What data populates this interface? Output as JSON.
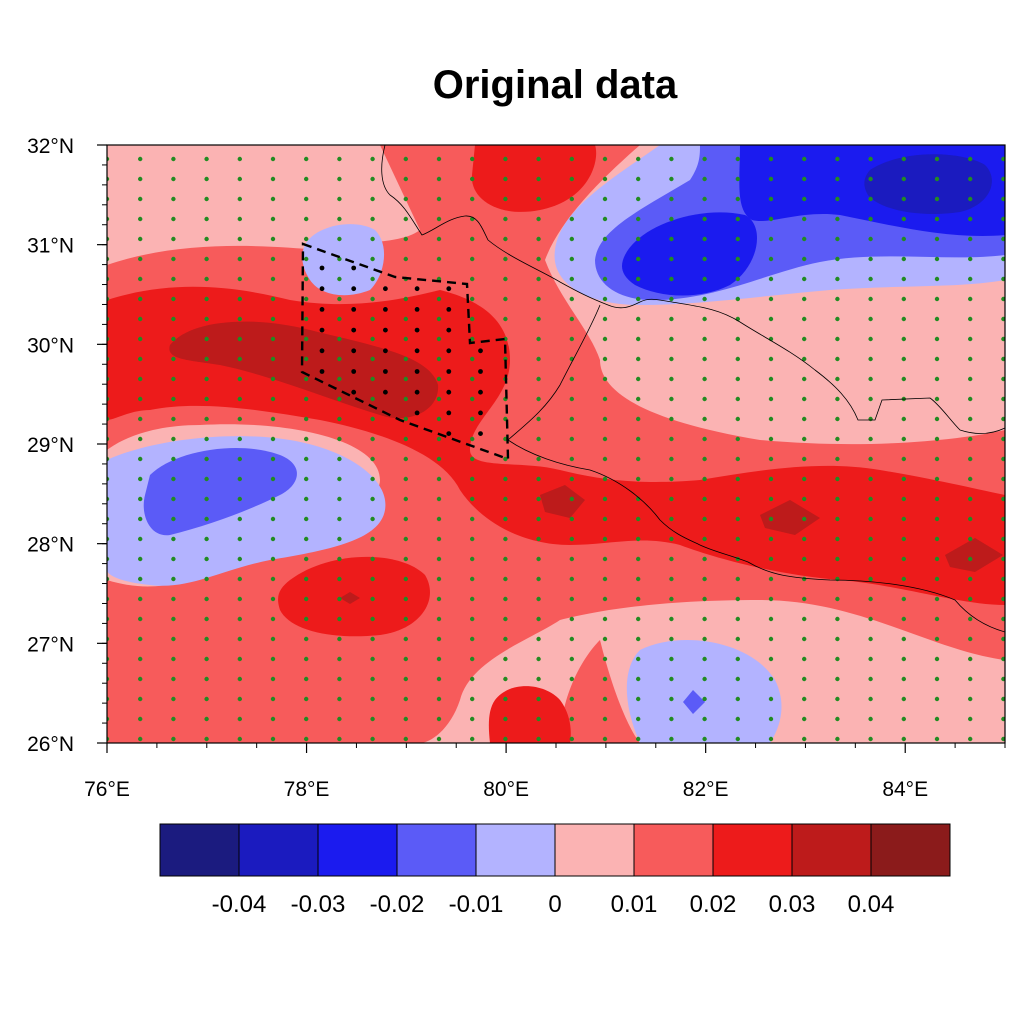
{
  "title": "Original data",
  "colors": {
    "levels": [
      "#1b1b7f",
      "#1b1bbf",
      "#1b1bef",
      "#5b5bf7",
      "#b3b3ff",
      "#fbb3b3",
      "#f75b5b",
      "#ed1b1b",
      "#bd1b1b",
      "#8b1b1b"
    ],
    "contour_line": "#000000",
    "stipple": "#228b22",
    "region_dot": "#000000",
    "boundary": "#000000"
  },
  "axes": {
    "lon_ticks": [
      "76°E",
      "78°E",
      "80°E",
      "82°E",
      "84°E"
    ],
    "lat_ticks": [
      "26°N",
      "27°N",
      "28°N",
      "29°N",
      "30°N",
      "31°N",
      "32°N"
    ]
  },
  "colorbar": {
    "labels": [
      "-0.04",
      "-0.03",
      "-0.02",
      "-0.01",
      "0",
      "0.01",
      "0.02",
      "0.03",
      "0.04"
    ]
  },
  "chart_data": {
    "type": "heatmap",
    "projection": "lat-lon",
    "lon_range": [
      76,
      85
    ],
    "lat_range": [
      26,
      32
    ],
    "contour_levels": [
      -0.04,
      -0.03,
      -0.02,
      -0.01,
      0,
      0.01,
      0.02,
      0.03,
      0.04
    ],
    "stippling": "significance dots over most of domain",
    "region_outline": "dashed polygon, approx 78E–80E, 28.8N–31N",
    "blobs": [
      {
        "lon": 84.3,
        "lat": 31.6,
        "value": -0.045
      },
      {
        "lon": 82.0,
        "lat": 30.8,
        "value": -0.03
      },
      {
        "lon": 77.2,
        "lat": 28.3,
        "value": -0.015
      },
      {
        "lon": 82.2,
        "lat": 26.6,
        "value": -0.015
      },
      {
        "lon": 78.5,
        "lat": 30.9,
        "value": -0.012
      },
      {
        "lon": 78.3,
        "lat": 29.8,
        "value": 0.045
      },
      {
        "lon": 80.7,
        "lat": 31.7,
        "value": 0.035
      },
      {
        "lon": 80.5,
        "lat": 28.4,
        "value": 0.035
      },
      {
        "lon": 82.9,
        "lat": 28.3,
        "value": 0.035
      },
      {
        "lon": 84.7,
        "lat": 27.9,
        "value": 0.035
      },
      {
        "lon": 78.5,
        "lat": 27.4,
        "value": 0.035
      },
      {
        "lon": 80.2,
        "lat": 26.3,
        "value": 0.03
      }
    ]
  }
}
